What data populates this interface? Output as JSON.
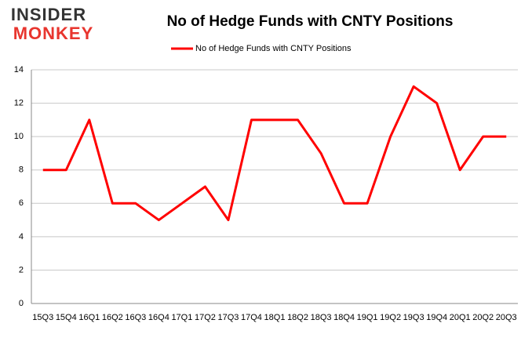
{
  "logo": {
    "line1": "INSIDER",
    "line2": "MONKEY"
  },
  "chart_data": {
    "type": "line",
    "title": "No of Hedge Funds with CNTY Positions",
    "categories": [
      "15Q3",
      "15Q4",
      "16Q1",
      "16Q2",
      "16Q3",
      "16Q4",
      "17Q1",
      "17Q2",
      "17Q3",
      "17Q4",
      "18Q1",
      "18Q2",
      "18Q3",
      "18Q4",
      "19Q1",
      "19Q2",
      "19Q3",
      "19Q4",
      "20Q1",
      "20Q2",
      "20Q3"
    ],
    "series": [
      {
        "name": "No of Hedge Funds with CNTY Positions",
        "color": "#ff0000",
        "values": [
          8,
          8,
          11,
          6,
          6,
          5,
          6,
          7,
          5,
          11,
          11,
          11,
          9,
          6,
          6,
          10,
          13,
          12,
          8,
          10,
          10
        ]
      }
    ],
    "ylim": [
      0,
      14
    ],
    "yticks": [
      0,
      2,
      4,
      6,
      8,
      10,
      12,
      14
    ],
    "grid": true,
    "legend": "top"
  }
}
